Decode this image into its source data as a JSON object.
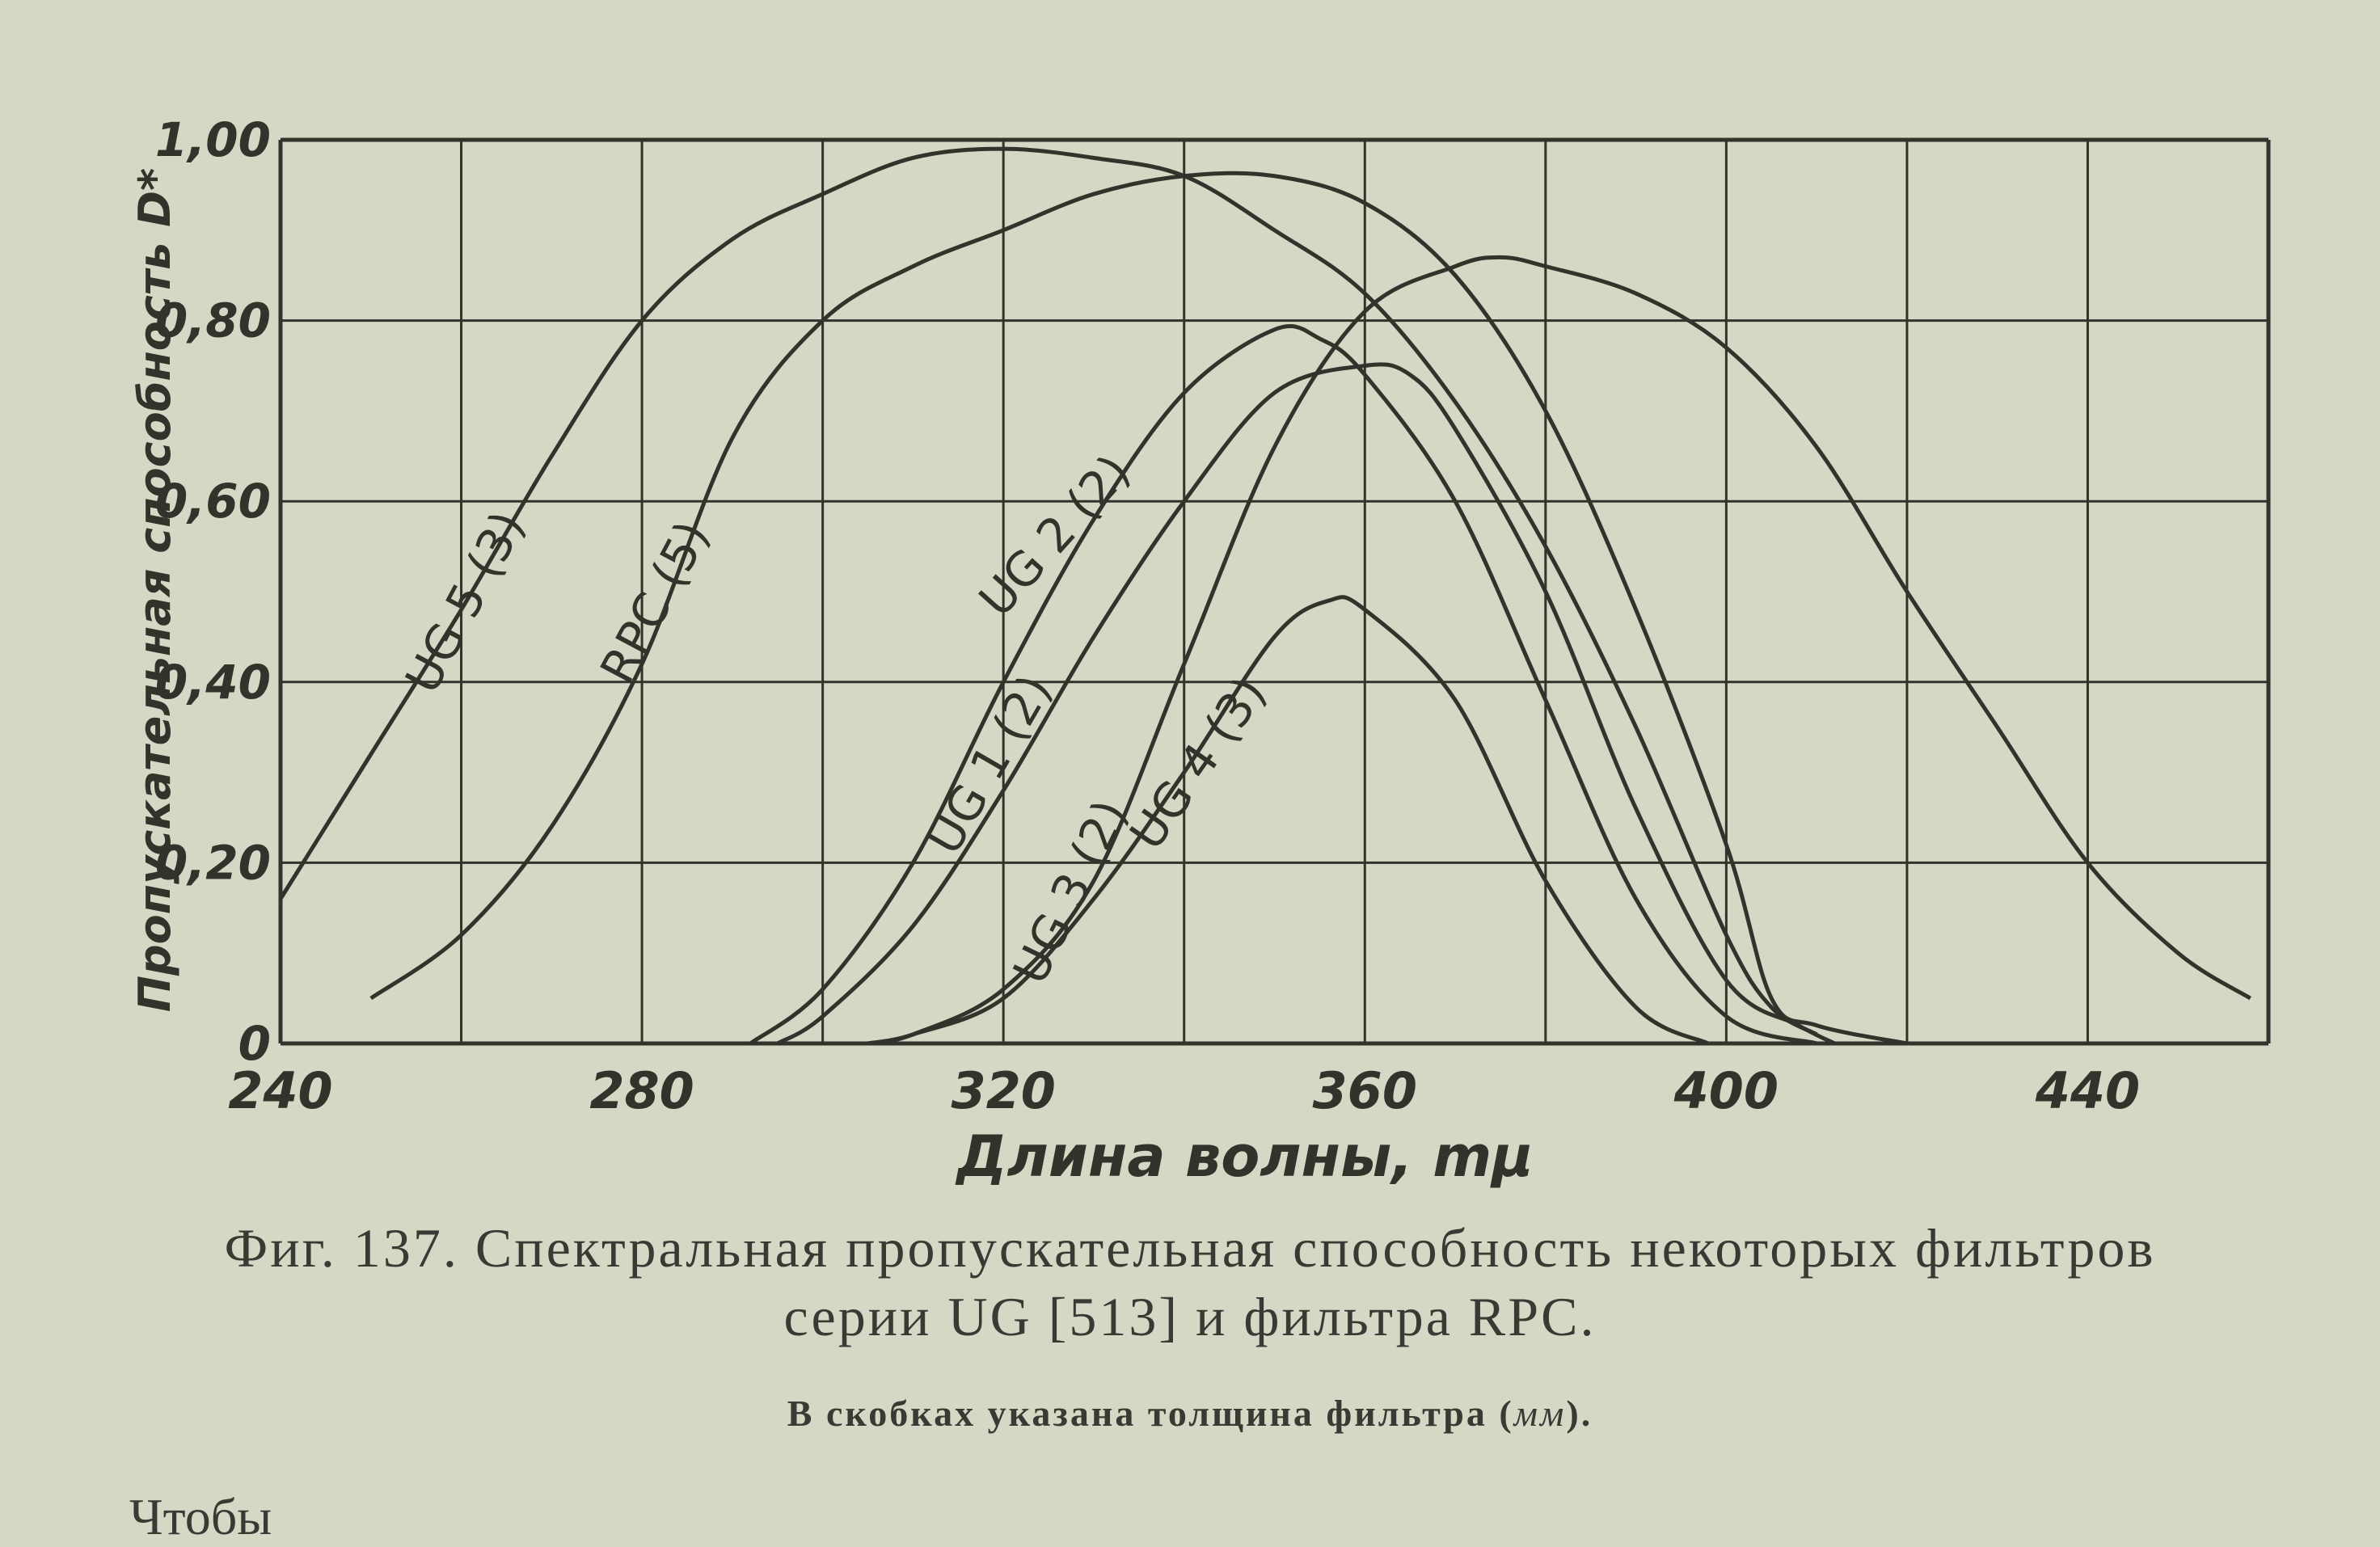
{
  "chart_data": {
    "type": "line",
    "xlabel": "Длина волны, mμ",
    "ylabel": "Пропускательная способность D*",
    "xlim": [
      240,
      460
    ],
    "ylim": [
      0,
      1.0
    ],
    "x_ticks": [
      240,
      280,
      320,
      360,
      400,
      440
    ],
    "x_grid_step": 20,
    "y_ticks": [
      "0",
      "0,20",
      "0,40",
      "0,60",
      "0,80",
      "1,00"
    ],
    "y_tick_values": [
      0,
      0.2,
      0.4,
      0.6,
      0.8,
      1.0
    ],
    "grid": true,
    "ink_color": "#33332c",
    "paper_color": "#d6d8c6",
    "series": [
      {
        "name": "UG 5 (3)",
        "x": [
          240,
          250,
          260,
          270,
          280,
          290,
          300,
          310,
          320,
          330,
          340,
          350,
          360,
          370,
          380,
          390,
          400,
          405,
          410
        ],
        "y": [
          0.16,
          0.32,
          0.48,
          0.65,
          0.8,
          0.89,
          0.94,
          0.98,
          0.99,
          0.98,
          0.96,
          0.9,
          0.83,
          0.71,
          0.55,
          0.35,
          0.12,
          0.04,
          0.01
        ]
      },
      {
        "name": "RPC (5)",
        "x": [
          250,
          260,
          270,
          280,
          290,
          300,
          310,
          320,
          330,
          340,
          350,
          360,
          370,
          380,
          390,
          400,
          405,
          410,
          420
        ],
        "y": [
          0.05,
          0.12,
          0.24,
          0.42,
          0.67,
          0.8,
          0.86,
          0.9,
          0.94,
          0.96,
          0.96,
          0.93,
          0.85,
          0.7,
          0.48,
          0.22,
          0.05,
          0.02,
          0.0
        ]
      },
      {
        "name": "UG 2 (2)",
        "x": [
          292,
          300,
          310,
          320,
          330,
          340,
          350,
          355,
          360,
          370,
          380,
          390,
          400,
          410
        ],
        "y": [
          0.0,
          0.06,
          0.2,
          0.4,
          0.58,
          0.72,
          0.79,
          0.78,
          0.74,
          0.6,
          0.38,
          0.16,
          0.03,
          0.0
        ]
      },
      {
        "name": "UG 1 (2)",
        "x": [
          295,
          300,
          310,
          320,
          330,
          340,
          350,
          360,
          365,
          370,
          380,
          390,
          400,
          408,
          412
        ],
        "y": [
          0.0,
          0.03,
          0.13,
          0.28,
          0.45,
          0.6,
          0.72,
          0.75,
          0.74,
          0.68,
          0.5,
          0.26,
          0.07,
          0.02,
          0.0
        ]
      },
      {
        "name": "UG 3 (2)",
        "x": [
          305,
          310,
          320,
          330,
          340,
          350,
          360,
          370,
          375,
          380,
          390,
          400,
          410,
          420,
          430,
          440,
          450,
          458
        ],
        "y": [
          0.0,
          0.01,
          0.06,
          0.18,
          0.42,
          0.66,
          0.81,
          0.86,
          0.87,
          0.86,
          0.83,
          0.77,
          0.66,
          0.5,
          0.35,
          0.2,
          0.1,
          0.05
        ]
      },
      {
        "name": "UG 4 (3)",
        "x": [
          305,
          310,
          320,
          330,
          340,
          350,
          356,
          360,
          370,
          380,
          390,
          398
        ],
        "y": [
          0.0,
          0.01,
          0.05,
          0.16,
          0.3,
          0.45,
          0.49,
          0.48,
          0.38,
          0.18,
          0.04,
          0.0
        ]
      }
    ]
  },
  "caption": {
    "line1": "Фиг. 137. Спектральная пропускательная способность некоторых фильтров",
    "line2": "серии UG [513] и фильтра RPC.",
    "line3_text": "В скобках указана толщина фильтра (",
    "line3_unit": "мм",
    "line3_end": ")."
  },
  "page_text": {
    "bottom_fragment": "Чтобы"
  }
}
